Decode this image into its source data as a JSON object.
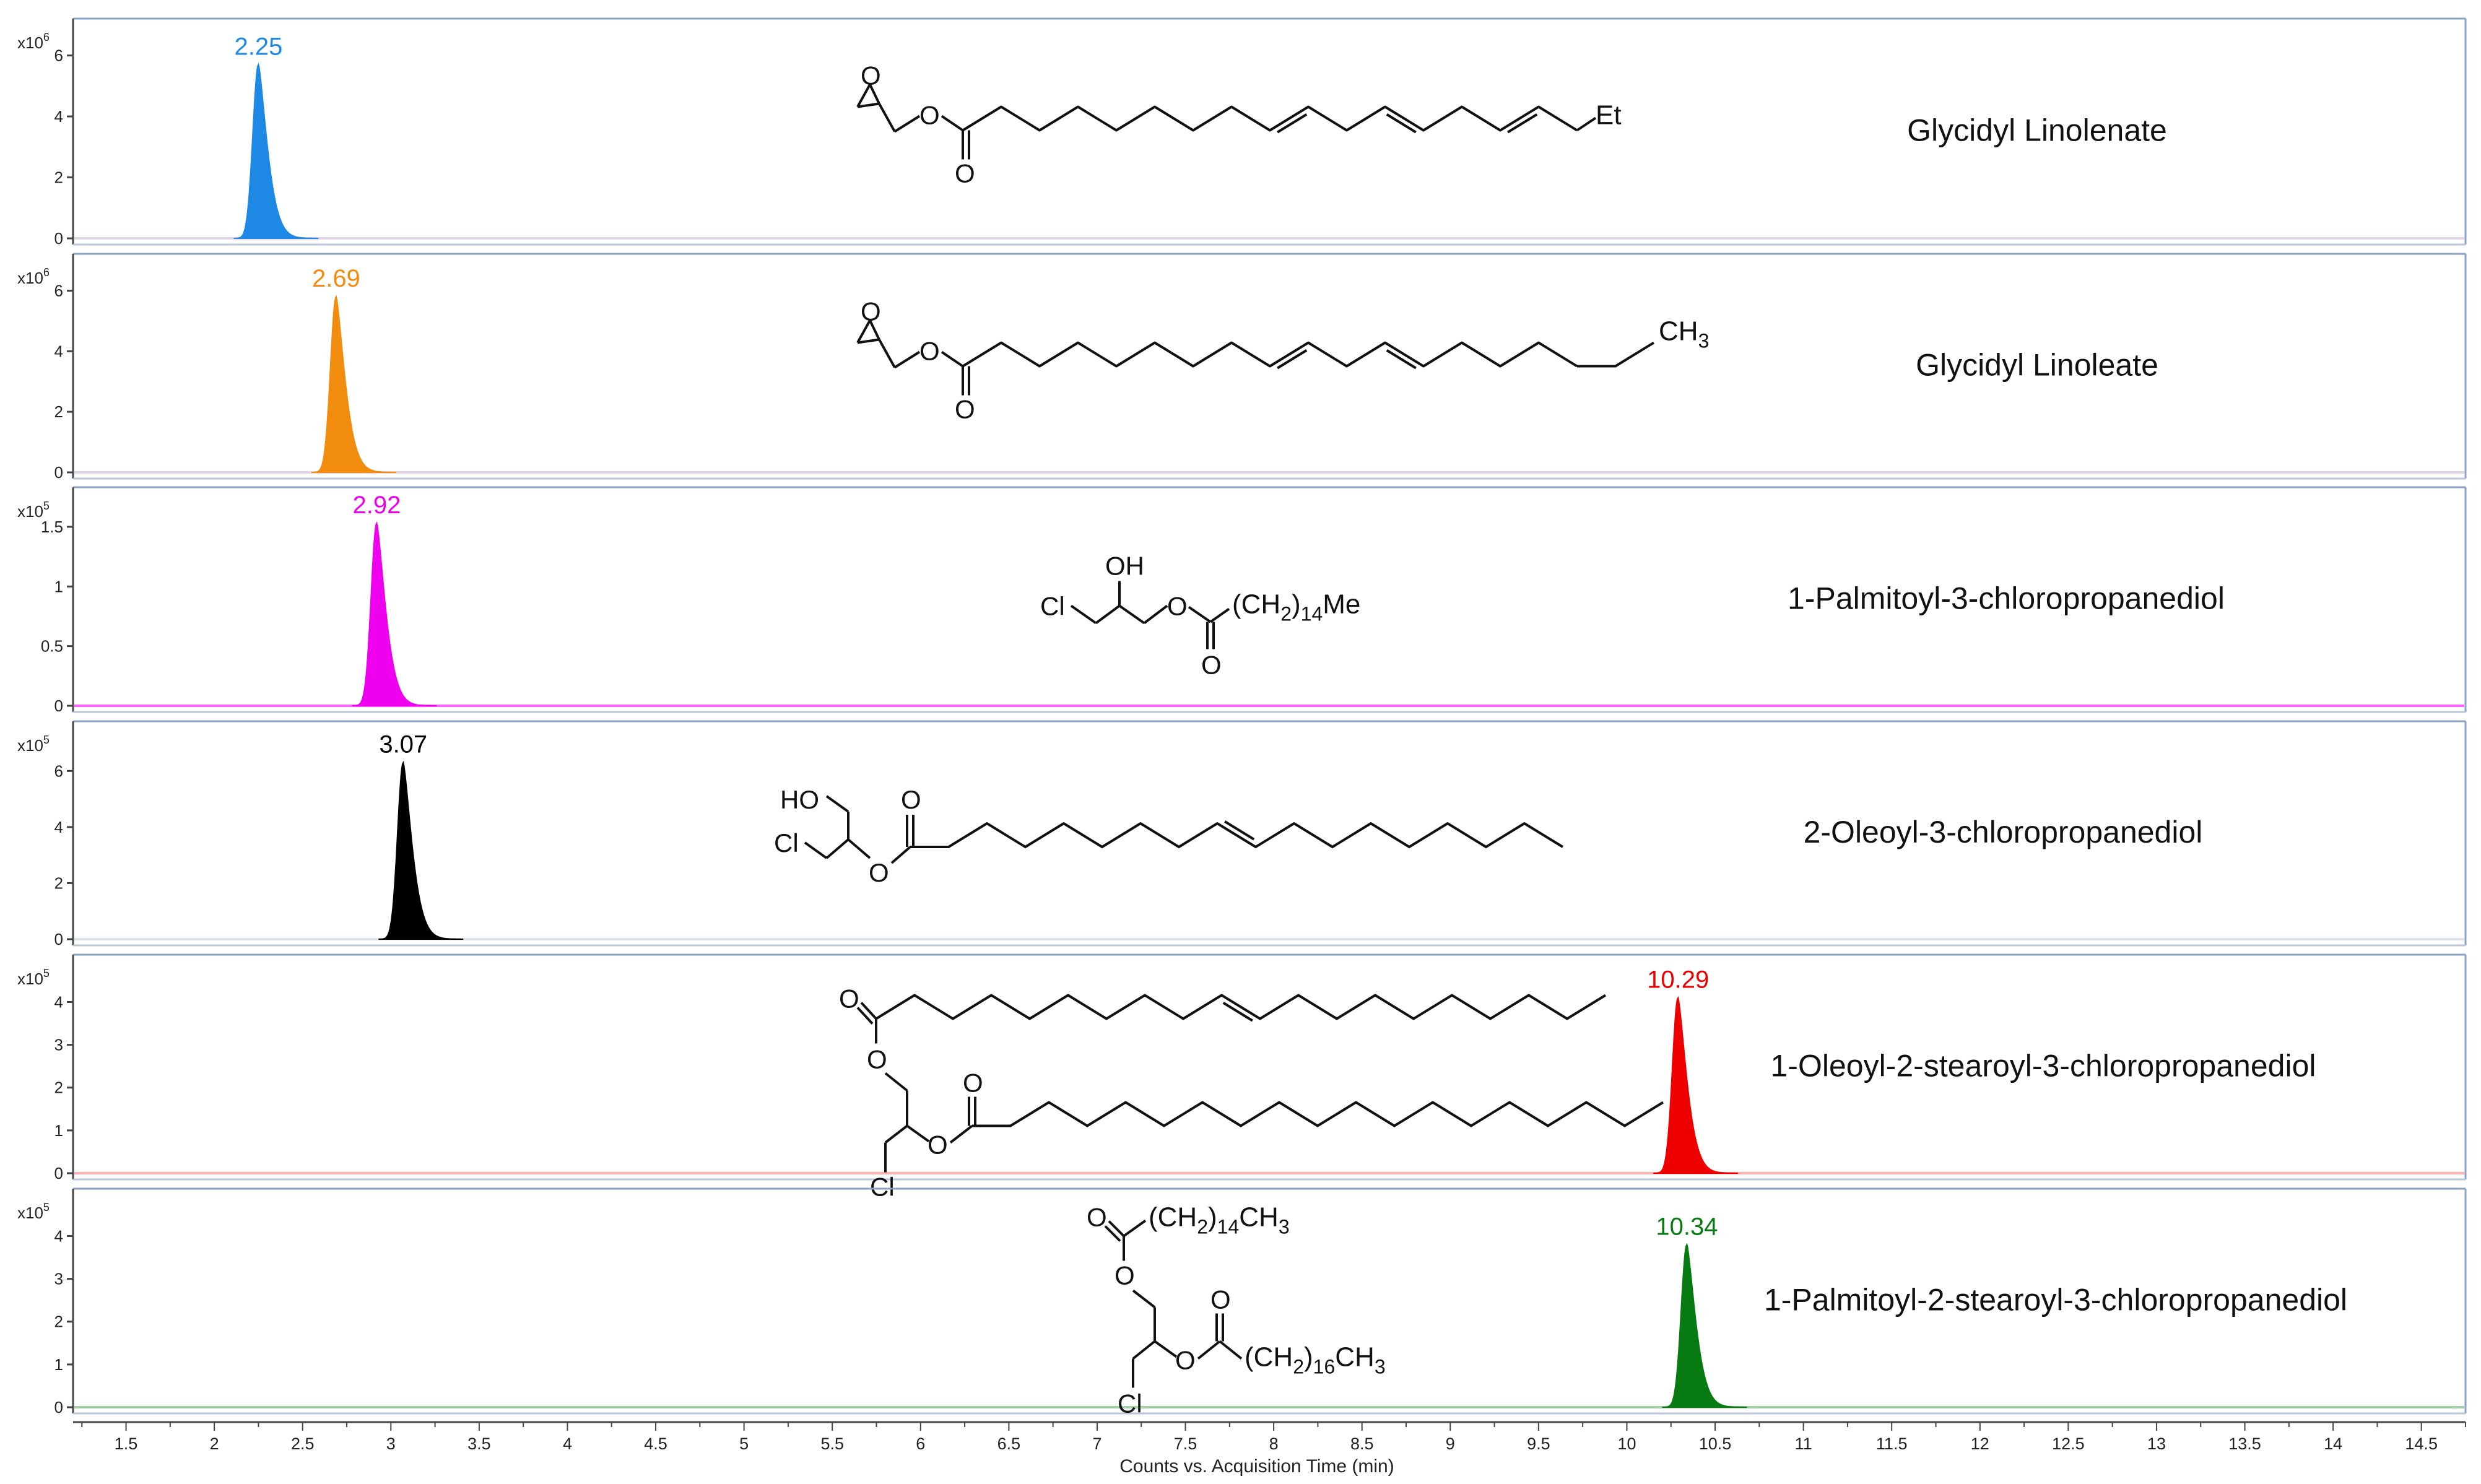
{
  "chart_data": {
    "type": "line",
    "xlabel": "Counts vs. Acquisition Time (min)",
    "xlim": [
      1.2,
      14.75
    ],
    "x_ticks": [
      "1.5",
      "2",
      "2.5",
      "3",
      "3.5",
      "4",
      "4.5",
      "5",
      "5.5",
      "6",
      "6.5",
      "7",
      "7.5",
      "8",
      "8.5",
      "9",
      "9.5",
      "10",
      "10.5",
      "11",
      "11.5",
      "12",
      "12.5",
      "13",
      "13.5",
      "14",
      "14.5"
    ],
    "panels": [
      {
        "compound": "Glycidyl Linolenate",
        "color": "#1E88E5",
        "scale_base": "x10",
        "scale_exp": "6",
        "ylim": [
          0,
          6.5
        ],
        "y_ticks": [
          "0",
          "2",
          "4",
          "6"
        ],
        "peak_time": 2.25,
        "peak_label": "2.25",
        "peak_height": 5.7,
        "baseline_color": "#e3d4ec",
        "structure": {
          "type": "glycidyl",
          "end_label": "Et",
          "ester_o": "O",
          "carbonyl_o": "O"
        }
      },
      {
        "compound": "Glycidyl Linoleate",
        "color": "#F28C0F",
        "scale_base": "x10",
        "scale_exp": "6",
        "ylim": [
          0,
          6.5
        ],
        "y_ticks": [
          "0",
          "2",
          "4",
          "6"
        ],
        "peak_time": 2.69,
        "peak_label": "2.69",
        "peak_height": 5.8,
        "baseline_color": "#e3d4ec",
        "structure": {
          "type": "glycidyl2",
          "end_label": "CH",
          "end_sub": "3",
          "ester_o": "O",
          "carbonyl_o": "O"
        }
      },
      {
        "compound": "1-Palmitoyl-3-chloropropanediol",
        "color": "#EE00EE",
        "scale_base": "x10",
        "scale_exp": "5",
        "ylim": [
          0,
          1.65
        ],
        "y_ticks": [
          "0",
          "0.5",
          "1",
          "1.5"
        ],
        "peak_time": 2.92,
        "peak_label": "2.92",
        "peak_height": 1.53,
        "baseline_color": "#ff66ff",
        "structure": {
          "type": "mono",
          "oh": "OH",
          "cl": "Cl",
          "ester_o": "O",
          "carbonyl_o": "O",
          "chain": "(CH",
          "chain_sub": "2",
          "chain_end": ")",
          "chain_mult": "14",
          "chain_tail": "Me"
        }
      },
      {
        "compound": "2-Oleoyl-3-chloropropanediol",
        "color": "#000000",
        "scale_base": "x10",
        "scale_exp": "5",
        "ylim": [
          0,
          7.0
        ],
        "y_ticks": [
          "0",
          "2",
          "4",
          "6"
        ],
        "peak_time": 3.07,
        "peak_label": "3.07",
        "peak_height": 6.3,
        "baseline_color": "#dde3ea",
        "structure": {
          "type": "oleoyl2",
          "ho": "HO",
          "cl": "Cl",
          "ester_o": "O",
          "carbonyl_o": "O"
        }
      },
      {
        "compound": "1-Oleoyl-2-stearoyl-3-chloropropanediol",
        "color": "#EE0000",
        "scale_base": "x10",
        "scale_exp": "5",
        "ylim": [
          0,
          4.6
        ],
        "y_ticks": [
          "0",
          "1",
          "2",
          "3",
          "4"
        ],
        "peak_time": 10.29,
        "peak_label": "10.29",
        "peak_height": 4.1,
        "baseline_color": "#ffb0b0",
        "structure": {
          "type": "diester_drawn",
          "cl": "Cl",
          "o1": "O",
          "o2": "O",
          "o3": "O",
          "o4": "O"
        }
      },
      {
        "compound": "1-Palmitoyl-2-stearoyl-3-chloropropanediol",
        "color": "#087A12",
        "scale_base": "x10",
        "scale_exp": "5",
        "ylim": [
          0,
          4.6
        ],
        "y_ticks": [
          "0",
          "1",
          "2",
          "3",
          "4"
        ],
        "peak_time": 10.34,
        "peak_label": "10.34",
        "peak_height": 3.8,
        "baseline_color": "#9fd3a4",
        "structure": {
          "type": "diester_text",
          "cl": "Cl",
          "o1": "O",
          "o2": "O",
          "o3": "O",
          "o4": "O",
          "chain1": "(CH",
          "chain1_sub": "2",
          "chain1_close": ")",
          "chain1_mult": "14",
          "chain1_tail": "CH",
          "chain1_tail_sub": "3",
          "chain2": "(CH",
          "chain2_sub": "2",
          "chain2_close": ")",
          "chain2_mult": "16",
          "chain2_tail": "CH",
          "chain2_tail_sub": "3"
        }
      }
    ]
  }
}
